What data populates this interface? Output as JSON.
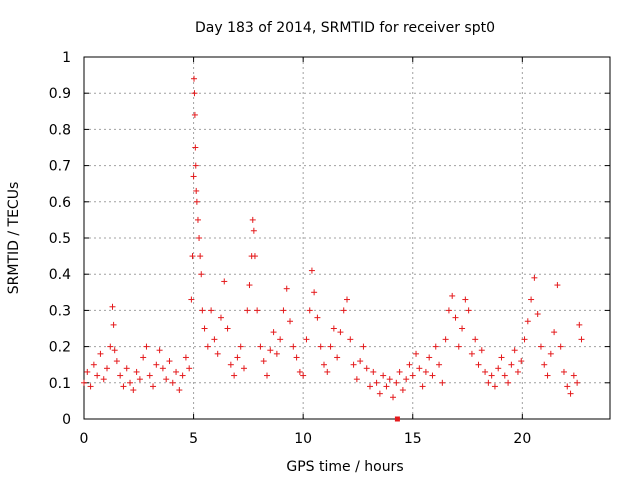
{
  "chart_data": {
    "type": "scatter",
    "title": "Day 183 of 2014, SRMTID for receiver spt0",
    "xlabel": "GPS time / hours",
    "ylabel": "SRMTID / TECUs",
    "xlim": [
      0,
      24
    ],
    "ylim": [
      0,
      1
    ],
    "xticks": [
      "0",
      "5",
      "10",
      "15",
      "20"
    ],
    "yticks": [
      "0",
      "0.1",
      "0.2",
      "0.3",
      "0.4",
      "0.5",
      "0.6",
      "0.7",
      "0.8",
      "0.9",
      "1"
    ],
    "grid": true,
    "marker": "plus",
    "color": "#e41a1c",
    "series": [
      {
        "name": "spt0",
        "x": [
          0.0,
          0.15,
          0.3,
          0.45,
          0.6,
          0.75,
          0.9,
          1.05,
          1.2,
          1.3,
          1.35,
          1.4,
          1.5,
          1.65,
          1.8,
          1.95,
          2.1,
          2.25,
          2.4,
          2.55,
          2.7,
          2.85,
          3.0,
          3.15,
          3.3,
          3.45,
          3.6,
          3.75,
          3.9,
          4.05,
          4.2,
          4.35,
          4.5,
          4.65,
          4.8,
          4.9,
          4.95,
          5.0,
          5.02,
          5.04,
          5.06,
          5.08,
          5.1,
          5.12,
          5.15,
          5.2,
          5.25,
          5.3,
          5.35,
          5.4,
          5.5,
          5.65,
          5.8,
          5.95,
          6.1,
          6.25,
          6.4,
          6.55,
          6.7,
          6.85,
          7.0,
          7.15,
          7.3,
          7.45,
          7.55,
          7.65,
          7.7,
          7.75,
          7.8,
          7.9,
          8.05,
          8.2,
          8.35,
          8.5,
          8.65,
          8.8,
          8.95,
          9.1,
          9.25,
          9.4,
          9.55,
          9.7,
          9.85,
          10.0,
          10.15,
          10.3,
          10.4,
          10.5,
          10.65,
          10.8,
          10.95,
          11.1,
          11.25,
          11.4,
          11.55,
          11.7,
          11.85,
          12.0,
          12.15,
          12.3,
          12.45,
          12.6,
          12.75,
          12.9,
          13.05,
          13.2,
          13.35,
          13.5,
          13.65,
          13.8,
          13.95,
          14.1,
          14.25,
          14.4,
          14.55,
          14.7,
          14.85,
          15.0,
          15.15,
          15.3,
          15.45,
          15.6,
          15.75,
          15.9,
          16.05,
          16.2,
          16.35,
          16.5,
          16.65,
          16.8,
          16.95,
          17.1,
          17.25,
          17.4,
          17.55,
          17.7,
          17.85,
          18.0,
          18.15,
          18.3,
          18.45,
          18.6,
          18.75,
          18.9,
          19.05,
          19.2,
          19.35,
          19.5,
          19.65,
          19.8,
          19.95,
          20.1,
          20.25,
          20.4,
          20.55,
          20.7,
          20.85,
          21.0,
          21.15,
          21.3,
          21.45,
          21.6,
          21.75,
          21.9,
          22.05,
          22.2,
          22.35,
          22.5,
          22.6,
          22.7
        ],
        "y": [
          0.1,
          0.13,
          0.09,
          0.15,
          0.12,
          0.18,
          0.11,
          0.14,
          0.2,
          0.31,
          0.26,
          0.19,
          0.16,
          0.12,
          0.09,
          0.14,
          0.1,
          0.08,
          0.13,
          0.11,
          0.17,
          0.2,
          0.12,
          0.09,
          0.15,
          0.19,
          0.14,
          0.11,
          0.16,
          0.1,
          0.13,
          0.08,
          0.12,
          0.17,
          0.14,
          0.33,
          0.45,
          0.67,
          0.94,
          0.9,
          0.84,
          0.75,
          0.7,
          0.63,
          0.6,
          0.55,
          0.5,
          0.45,
          0.4,
          0.3,
          0.25,
          0.2,
          0.3,
          0.22,
          0.18,
          0.28,
          0.38,
          0.25,
          0.15,
          0.12,
          0.17,
          0.2,
          0.14,
          0.3,
          0.37,
          0.45,
          0.55,
          0.52,
          0.45,
          0.3,
          0.2,
          0.16,
          0.12,
          0.19,
          0.24,
          0.18,
          0.22,
          0.3,
          0.36,
          0.27,
          0.2,
          0.17,
          0.13,
          0.12,
          0.22,
          0.3,
          0.41,
          0.35,
          0.28,
          0.2,
          0.15,
          0.13,
          0.2,
          0.25,
          0.17,
          0.24,
          0.3,
          0.33,
          0.22,
          0.15,
          0.11,
          0.16,
          0.2,
          0.14,
          0.09,
          0.13,
          0.1,
          0.07,
          0.12,
          0.09,
          0.11,
          0.06,
          0.1,
          0.13,
          0.08,
          0.11,
          0.15,
          0.12,
          0.18,
          0.14,
          0.09,
          0.13,
          0.17,
          0.12,
          0.2,
          0.15,
          0.1,
          0.22,
          0.3,
          0.34,
          0.28,
          0.2,
          0.25,
          0.33,
          0.3,
          0.18,
          0.22,
          0.15,
          0.19,
          0.13,
          0.1,
          0.12,
          0.09,
          0.14,
          0.17,
          0.12,
          0.1,
          0.15,
          0.19,
          0.13,
          0.16,
          0.22,
          0.27,
          0.33,
          0.39,
          0.29,
          0.2,
          0.15,
          0.12,
          0.18,
          0.24,
          0.37,
          0.2,
          0.13,
          0.09,
          0.07,
          0.12,
          0.1,
          0.26,
          0.22
        ]
      },
      {
        "name": "marker",
        "x": [
          14.3
        ],
        "y": [
          0.0
        ]
      }
    ]
  }
}
